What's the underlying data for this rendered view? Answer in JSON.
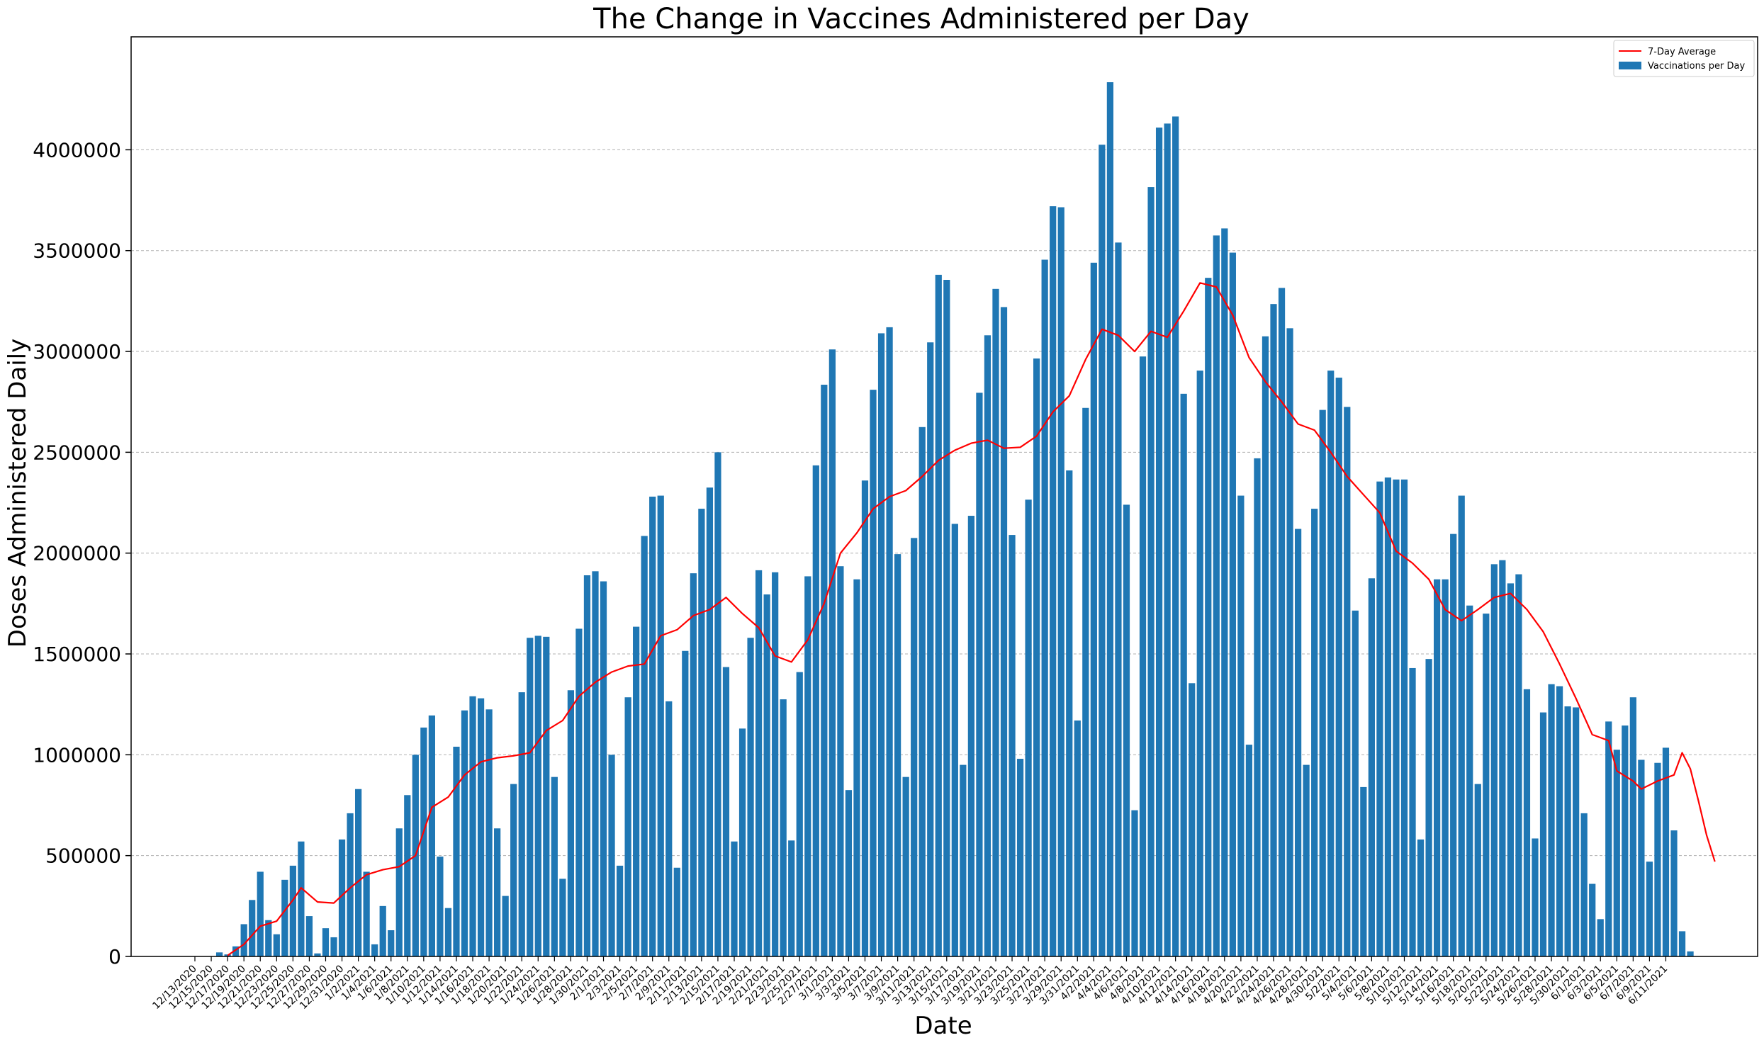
{
  "chart_data": {
    "type": "bar",
    "title": "The Change in Vaccines Administered per Day",
    "xlabel": "Date",
    "ylabel": "Doses Administered Daily",
    "ylim": [
      0,
      4560000
    ],
    "yticks": [
      0,
      500000,
      1000000,
      1500000,
      2000000,
      2500000,
      3000000,
      3500000,
      4000000
    ],
    "grid": "y-dashed",
    "legend": {
      "placement": "top-right",
      "entries": [
        {
          "label": "7-Day Average",
          "kind": "line"
        },
        {
          "label": "Vaccinations per Day",
          "kind": "bar"
        }
      ]
    },
    "x_start": "12/13/2020",
    "x_end": "6/12/2021",
    "x_tick_labels": [
      "12/13/2020",
      "12/15/2020",
      "12/17/2020",
      "12/19/2020",
      "12/21/2020",
      "12/23/2020",
      "12/25/2020",
      "12/27/2020",
      "12/29/2020",
      "12/31/2020",
      "1/2/2021",
      "1/4/2021",
      "1/6/2021",
      "1/8/2021",
      "1/10/2021",
      "1/12/2021",
      "1/14/2021",
      "1/16/2021",
      "1/18/2021",
      "1/20/2021",
      "1/22/2021",
      "1/24/2021",
      "1/26/2021",
      "1/28/2021",
      "1/30/2021",
      "2/1/2021",
      "2/3/2021",
      "2/5/2021",
      "2/7/2021",
      "2/9/2021",
      "2/11/2021",
      "2/13/2021",
      "2/15/2021",
      "2/17/2021",
      "2/19/2021",
      "2/21/2021",
      "2/23/2021",
      "2/25/2021",
      "2/27/2021",
      "3/1/2021",
      "3/3/2021",
      "3/5/2021",
      "3/7/2021",
      "3/9/2021",
      "3/11/2021",
      "3/13/2021",
      "3/15/2021",
      "3/17/2021",
      "3/19/2021",
      "3/21/2021",
      "3/23/2021",
      "3/25/2021",
      "3/27/2021",
      "3/29/2021",
      "3/31/2021",
      "4/2/2021",
      "4/4/2021",
      "4/6/2021",
      "4/8/2021",
      "4/10/2021",
      "4/12/2021",
      "4/14/2021",
      "4/16/2021",
      "4/18/2021",
      "4/20/2021",
      "4/22/2021",
      "4/24/2021",
      "4/26/2021",
      "4/28/2021",
      "4/30/2021",
      "5/2/2021",
      "5/4/2021",
      "5/6/2021",
      "5/8/2021",
      "5/10/2021",
      "5/12/2021",
      "5/14/2021",
      "5/16/2021",
      "5/18/2021",
      "5/20/2021",
      "5/22/2021",
      "5/24/2021",
      "5/26/2021",
      "5/28/2021",
      "5/30/2021",
      "6/1/2021",
      "6/3/2021",
      "6/5/2021",
      "6/7/2021",
      "6/9/2021",
      "6/11/2021"
    ],
    "series": [
      {
        "name": "Vaccinations per Day",
        "kind": "bar",
        "color": "#1f77b4",
        "values": [
          0,
          0,
          0,
          20000,
          10000,
          50000,
          160000,
          280000,
          420000,
          180000,
          110000,
          380000,
          450000,
          570000,
          200000,
          15000,
          140000,
          95000,
          580000,
          710000,
          830000,
          420000,
          60000,
          250000,
          130000,
          635000,
          800000,
          1000000,
          1135000,
          1195000,
          495000,
          240000,
          1040000,
          1220000,
          1290000,
          1280000,
          1225000,
          635000,
          300000,
          855000,
          1310000,
          1580000,
          1590000,
          1585000,
          890000,
          385000,
          1320000,
          1625000,
          1890000,
          1910000,
          1860000,
          1000000,
          450000,
          1285000,
          1635000,
          2085000,
          2280000,
          2285000,
          1265000,
          440000,
          1515000,
          1900000,
          2220000,
          2325000,
          2500000,
          1435000,
          570000,
          1130000,
          1580000,
          1915000,
          1795000,
          1905000,
          1275000,
          575000,
          1410000,
          1885000,
          2435000,
          2835000,
          3010000,
          1935000,
          825000,
          1870000,
          2360000,
          2810000,
          3090000,
          3120000,
          1995000,
          890000,
          2075000,
          2625000,
          3045000,
          3380000,
          3355000,
          2145000,
          950000,
          2185000,
          2795000,
          3080000,
          3310000,
          3220000,
          2090000,
          980000,
          2265000,
          2965000,
          3455000,
          3720000,
          3715000,
          2410000,
          1170000,
          2720000,
          3440000,
          4025000,
          4335000,
          3540000,
          2240000,
          725000,
          2975000,
          3815000,
          4110000,
          4130000,
          4165000,
          2790000,
          1355000,
          2905000,
          3365000,
          3575000,
          3610000,
          3490000,
          2285000,
          1050000,
          2470000,
          3075000,
          3235000,
          3315000,
          3115000,
          2120000,
          950000,
          2220000,
          2710000,
          2905000,
          2870000,
          2725000,
          1715000,
          840000,
          1875000,
          2355000,
          2375000,
          2365000,
          2365000,
          1430000,
          580000,
          1475000,
          1870000,
          1870000,
          2095000,
          2285000,
          1740000,
          855000,
          1700000,
          1945000,
          1965000,
          1850000,
          1895000,
          1325000,
          585000,
          1210000,
          1350000,
          1340000,
          1240000,
          1235000,
          710000,
          360000,
          185000,
          1165000,
          1025000,
          1145000,
          1285000,
          975000,
          470000,
          960000,
          1035000,
          625000,
          125000,
          25000
        ]
      },
      {
        "name": "7-Day Average",
        "kind": "line",
        "color": "#ff0000",
        "points": [
          [
            "12/17/2020",
            5000
          ],
          [
            "12/19/2020",
            60000
          ],
          [
            "12/21/2020",
            150000
          ],
          [
            "12/23/2020",
            175000
          ],
          [
            "12/25/2020",
            280000
          ],
          [
            "12/26/2020",
            340000
          ],
          [
            "12/28/2020",
            270000
          ],
          [
            "12/30/2020",
            265000
          ],
          [
            "1/1/2021",
            340000
          ],
          [
            "1/3/2021",
            405000
          ],
          [
            "1/5/2021",
            430000
          ],
          [
            "1/7/2021",
            445000
          ],
          [
            "1/9/2021",
            500000
          ],
          [
            "1/11/2021",
            740000
          ],
          [
            "1/13/2021",
            790000
          ],
          [
            "1/15/2021",
            900000
          ],
          [
            "1/17/2021",
            965000
          ],
          [
            "1/19/2021",
            985000
          ],
          [
            "1/21/2021",
            995000
          ],
          [
            "1/23/2021",
            1010000
          ],
          [
            "1/25/2021",
            1120000
          ],
          [
            "1/27/2021",
            1170000
          ],
          [
            "1/29/2021",
            1290000
          ],
          [
            "1/31/2021",
            1360000
          ],
          [
            "2/2/2021",
            1410000
          ],
          [
            "2/4/2021",
            1440000
          ],
          [
            "2/6/2021",
            1450000
          ],
          [
            "2/8/2021",
            1590000
          ],
          [
            "2/10/2021",
            1620000
          ],
          [
            "2/12/2021",
            1690000
          ],
          [
            "2/14/2021",
            1720000
          ],
          [
            "2/16/2021",
            1780000
          ],
          [
            "2/18/2021",
            1700000
          ],
          [
            "2/20/2021",
            1630000
          ],
          [
            "2/22/2021",
            1490000
          ],
          [
            "2/24/2021",
            1460000
          ],
          [
            "2/26/2021",
            1570000
          ],
          [
            "2/28/2021",
            1750000
          ],
          [
            "3/2/2021",
            2000000
          ],
          [
            "3/4/2021",
            2100000
          ],
          [
            "3/6/2021",
            2220000
          ],
          [
            "3/8/2021",
            2280000
          ],
          [
            "3/10/2021",
            2310000
          ],
          [
            "3/12/2021",
            2380000
          ],
          [
            "3/14/2021",
            2460000
          ],
          [
            "3/16/2021",
            2510000
          ],
          [
            "3/18/2021",
            2545000
          ],
          [
            "3/20/2021",
            2560000
          ],
          [
            "3/22/2021",
            2520000
          ],
          [
            "3/24/2021",
            2525000
          ],
          [
            "3/26/2021",
            2580000
          ],
          [
            "3/28/2021",
            2700000
          ],
          [
            "3/30/2021",
            2780000
          ],
          [
            "4/1/2021",
            2960000
          ],
          [
            "4/3/2021",
            3110000
          ],
          [
            "4/5/2021",
            3080000
          ],
          [
            "4/7/2021",
            3000000
          ],
          [
            "4/9/2021",
            3100000
          ],
          [
            "4/11/2021",
            3070000
          ],
          [
            "4/13/2021",
            3200000
          ],
          [
            "4/15/2021",
            3340000
          ],
          [
            "4/17/2021",
            3320000
          ],
          [
            "4/19/2021",
            3180000
          ],
          [
            "4/21/2021",
            2970000
          ],
          [
            "4/23/2021",
            2850000
          ],
          [
            "4/25/2021",
            2750000
          ],
          [
            "4/27/2021",
            2640000
          ],
          [
            "4/29/2021",
            2610000
          ],
          [
            "5/1/2021",
            2500000
          ],
          [
            "5/3/2021",
            2380000
          ],
          [
            "5/5/2021",
            2290000
          ],
          [
            "5/7/2021",
            2200000
          ],
          [
            "5/9/2021",
            2010000
          ],
          [
            "5/11/2021",
            1950000
          ],
          [
            "5/13/2021",
            1870000
          ],
          [
            "5/15/2021",
            1720000
          ],
          [
            "5/17/2021",
            1665000
          ],
          [
            "5/19/2021",
            1720000
          ],
          [
            "5/21/2021",
            1780000
          ],
          [
            "5/23/2021",
            1800000
          ],
          [
            "5/25/2021",
            1720000
          ],
          [
            "5/27/2021",
            1610000
          ],
          [
            "5/29/2021",
            1450000
          ],
          [
            "5/31/2021",
            1280000
          ],
          [
            "6/2/2021",
            1100000
          ],
          [
            "6/4/2021",
            1070000
          ],
          [
            "6/5/2021",
            920000
          ],
          [
            "6/7/2021",
            870000
          ],
          [
            "6/8/2021",
            830000
          ],
          [
            "6/10/2021",
            870000
          ],
          [
            "6/12/2021",
            900000
          ],
          [
            "6/13/2021",
            1010000
          ],
          [
            "6/14/2021",
            930000
          ],
          [
            "6/15/2021",
            770000
          ],
          [
            "6/16/2021",
            600000
          ],
          [
            "6/17/2021",
            470000
          ]
        ]
      }
    ]
  }
}
